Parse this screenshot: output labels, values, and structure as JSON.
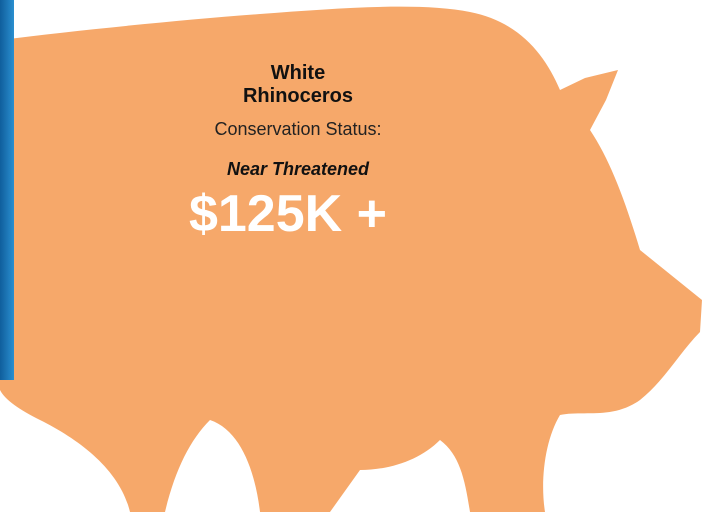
{
  "title": "White Rhinoceros",
  "status_label": "Conservation Status:",
  "status": "Near Threatened",
  "price": "$125K +"
}
